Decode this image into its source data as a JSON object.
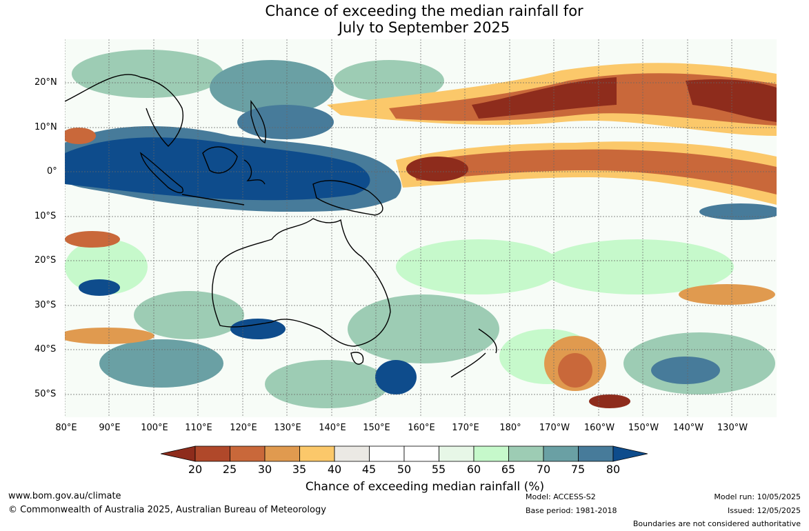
{
  "title": {
    "line1": "Chance of exceeding the median rainfall for",
    "line2": "July to September 2025"
  },
  "map": {
    "lat_labels": [
      "20°N",
      "10°N",
      "0°",
      "10°S",
      "20°S",
      "30°S",
      "40°S",
      "50°S"
    ],
    "lon_labels": [
      "80°E",
      "90°E",
      "100°E",
      "110°E",
      "120°E",
      "130°E",
      "140°E",
      "150°E",
      "160°E",
      "170°E",
      "180°",
      "170°W",
      "160°W",
      "150°W",
      "140°W",
      "130°W"
    ]
  },
  "legend": {
    "ticks": [
      "20",
      "25",
      "30",
      "35",
      "40",
      "45",
      "50",
      "55",
      "60",
      "65",
      "70",
      "75",
      "80"
    ],
    "colors": [
      "#8e2c1c",
      "#b0482a",
      "#c9683a",
      "#e09a4f",
      "#fbc86a",
      "#ebe9e4",
      "#ffffff",
      "#ffffff",
      "#e7f7e7",
      "#c6f9cb",
      "#9dccb4",
      "#6aa0a4",
      "#477b9a",
      "#0e4c8c"
    ],
    "label": "Chance of exceeding median rainfall (%)"
  },
  "footer": {
    "website": "www.bom.gov.au/climate",
    "copyright": "© Commonwealth of Australia 2025, Australian Bureau of Meteorology",
    "model": "Model: ACCESS-S2",
    "base_period": "Base period: 1981-2018",
    "model_run": "Model run: 10/05/2025",
    "issued": "Issued: 12/05/2025",
    "disclaimer": "Boundaries are not considered authoritative"
  }
}
